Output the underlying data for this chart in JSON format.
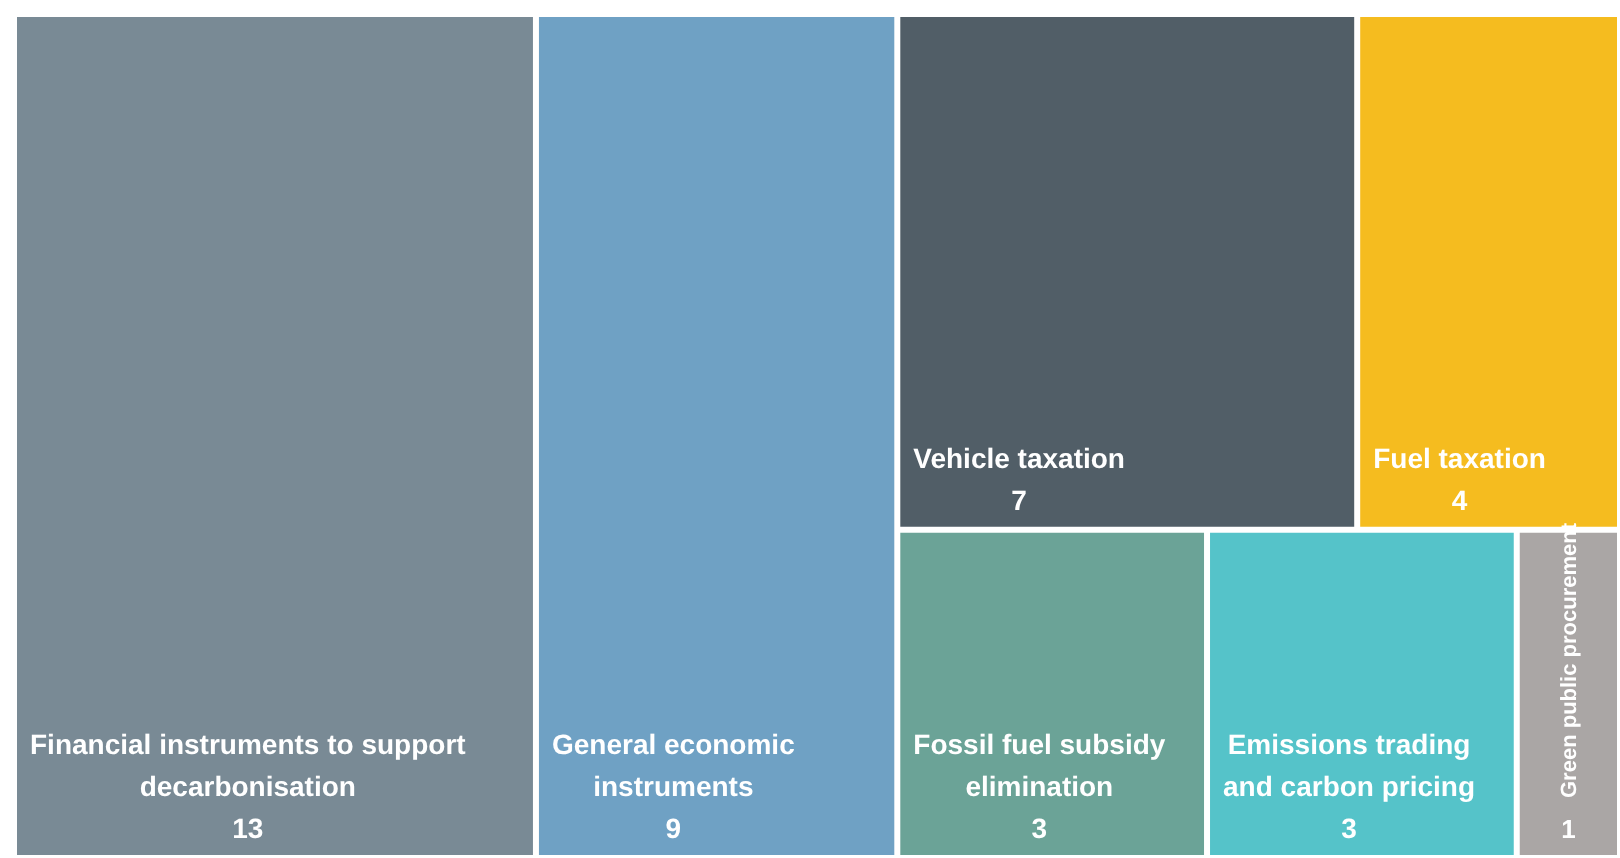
{
  "chart_data": {
    "type": "other",
    "categories": [
      "Financial instruments to support decarbonisation",
      "General economic instruments",
      "Vehicle taxation",
      "Fuel taxation",
      "Fossil fuel subsidy elimination",
      "Emissions trading and carbon pricing",
      "Green public procurement"
    ],
    "values": [
      13,
      9,
      7,
      4,
      3,
      3,
      1
    ],
    "colors": [
      "#798a95",
      "#6fa1c4",
      "#515e67",
      "#f5bc1f",
      "#6ba397",
      "#55c3c9",
      "#aaa6a5"
    ],
    "data_labels": true
  }
}
